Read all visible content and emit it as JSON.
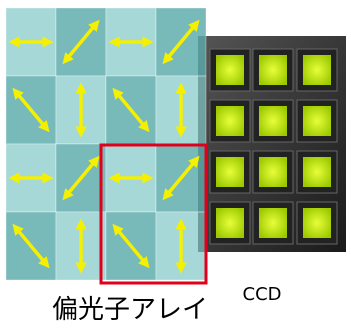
{
  "labels": {
    "polarizer": "偏光子アレイ",
    "sensor": "CCD"
  }
}
